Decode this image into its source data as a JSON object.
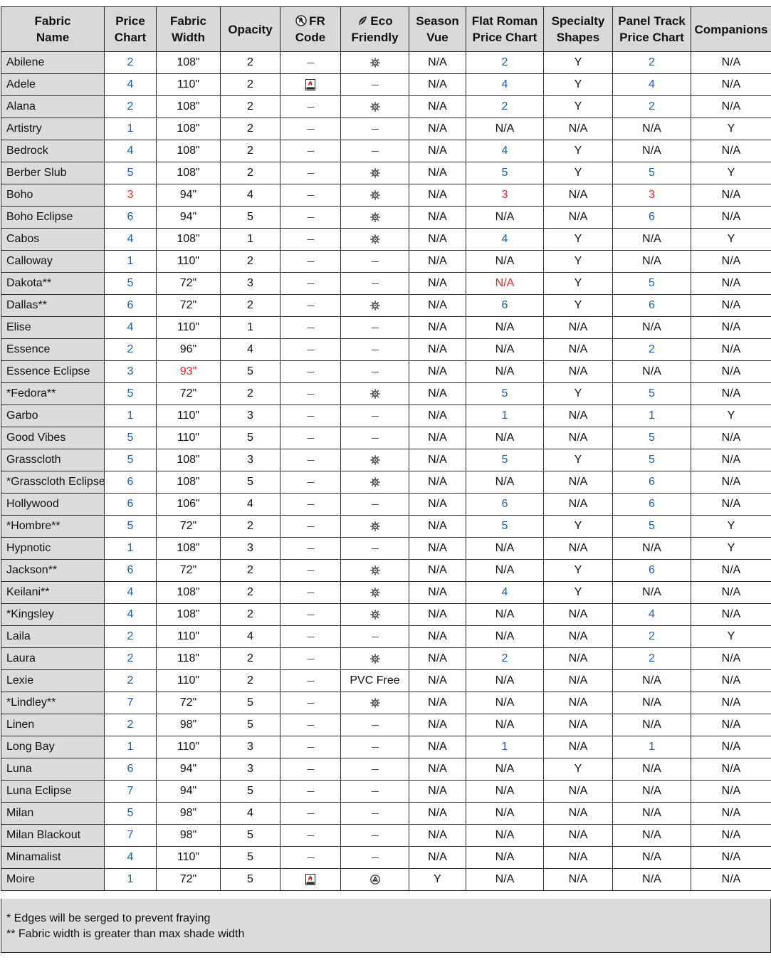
{
  "headers": [
    {
      "l1": "Fabric",
      "l2": "Name"
    },
    {
      "l1": "Price",
      "l2": "Chart"
    },
    {
      "l1": "Fabric",
      "l2": "Width"
    },
    {
      "l1": "Opacity",
      "l2": ""
    },
    {
      "l1": "FR",
      "l2": "Code",
      "icon": "fr-symbol-icon"
    },
    {
      "l1": "Eco",
      "l2": "Friendly",
      "icon": "eco-leaf-icon"
    },
    {
      "l1": "Season",
      "l2": "Vue"
    },
    {
      "l1": "Flat Roman",
      "l2": "Price Chart"
    },
    {
      "l1": "Specialty",
      "l2": "Shapes"
    },
    {
      "l1": "Panel Track",
      "l2": "Price Chart"
    },
    {
      "l1": "Companions",
      "l2": ""
    }
  ],
  "colors": {
    "blue": "#1f5fa6",
    "red": "#e0282e",
    "header_bg": "#d9d9d9",
    "name_bg": "#dcdcdc"
  },
  "rows": [
    {
      "name": "Abilene",
      "price": "2",
      "width": "108\"",
      "opacity": "2",
      "fr": "---",
      "eco": "eco",
      "season": "N/A",
      "flat": "2",
      "spec": "Y",
      "panel": "2",
      "comp": "N/A"
    },
    {
      "name": "Adele",
      "price": "4",
      "width": "110\"",
      "opacity": "2",
      "fr": "nfpa",
      "eco": "---",
      "season": "N/A",
      "flat": "4",
      "spec": "Y",
      "panel": "4",
      "comp": "N/A"
    },
    {
      "name": "Alana",
      "price": "2",
      "width": "108\"",
      "opacity": "2",
      "fr": "---",
      "eco": "eco",
      "season": "N/A",
      "flat": "2",
      "spec": "Y",
      "panel": "2",
      "comp": "N/A"
    },
    {
      "name": "Artistry",
      "price": "1",
      "width": "108\"",
      "opacity": "2",
      "fr": "---",
      "eco": "---",
      "season": "N/A",
      "flat": "N/A",
      "spec": "N/A",
      "panel": "N/A",
      "comp": "Y"
    },
    {
      "name": "Bedrock",
      "price": "4",
      "width": "108\"",
      "opacity": "2",
      "fr": "---",
      "eco": "---",
      "season": "N/A",
      "flat": "4",
      "spec": "Y",
      "panel": "N/A",
      "comp": "N/A"
    },
    {
      "name": "Berber Slub",
      "price": "5",
      "width": "108\"",
      "opacity": "2",
      "fr": "---",
      "eco": "eco",
      "season": "N/A",
      "flat": "5",
      "spec": "Y",
      "panel": "5",
      "comp": "Y"
    },
    {
      "name": "Boho",
      "price": "3",
      "width": "94\"",
      "opacity": "4",
      "fr": "---",
      "eco": "eco",
      "season": "N/A",
      "flat": "3",
      "spec": "N/A",
      "panel": "3",
      "comp": "N/A",
      "red": [
        "price",
        "flat",
        "panel"
      ]
    },
    {
      "name": "Boho Eclipse",
      "price": "6",
      "width": "94\"",
      "opacity": "5",
      "fr": "---",
      "eco": "eco",
      "season": "N/A",
      "flat": "N/A",
      "spec": "N/A",
      "panel": "6",
      "comp": "N/A"
    },
    {
      "name": "Cabos",
      "price": "4",
      "width": "108\"",
      "opacity": "1",
      "fr": "---",
      "eco": "eco",
      "season": "N/A",
      "flat": "4",
      "spec": "Y",
      "panel": "N/A",
      "comp": "Y"
    },
    {
      "name": "Calloway",
      "price": "1",
      "width": "110\"",
      "opacity": "2",
      "fr": "---",
      "eco": "---",
      "season": "N/A",
      "flat": "N/A",
      "spec": "Y",
      "panel": "N/A",
      "comp": "N/A"
    },
    {
      "name": "Dakota**",
      "price": "5",
      "width": "72\"",
      "opacity": "3",
      "fr": "---",
      "eco": "---",
      "season": "N/A",
      "flat": "N/A",
      "spec": "Y",
      "panel": "5",
      "comp": "N/A",
      "red": [
        "flat"
      ]
    },
    {
      "name": "Dallas**",
      "price": "6",
      "width": "72\"",
      "opacity": "2",
      "fr": "---",
      "eco": "eco",
      "season": "N/A",
      "flat": "6",
      "spec": "Y",
      "panel": "6",
      "comp": "N/A"
    },
    {
      "name": "Elise",
      "price": "4",
      "width": "110\"",
      "opacity": "1",
      "fr": "---",
      "eco": "---",
      "season": "N/A",
      "flat": "N/A",
      "spec": "N/A",
      "panel": "N/A",
      "comp": "N/A"
    },
    {
      "name": "Essence",
      "price": "2",
      "width": "96\"",
      "opacity": "4",
      "fr": "---",
      "eco": "---",
      "season": "N/A",
      "flat": "N/A",
      "spec": "N/A",
      "panel": "2",
      "comp": "N/A"
    },
    {
      "name": "Essence Eclipse",
      "price": "3",
      "width": "93\"",
      "opacity": "5",
      "fr": "---",
      "eco": "---",
      "season": "N/A",
      "flat": "N/A",
      "spec": "N/A",
      "panel": "N/A",
      "comp": "N/A",
      "red": [
        "width"
      ]
    },
    {
      "name": "*Fedora**",
      "price": "5",
      "width": "72\"",
      "opacity": "2",
      "fr": "---",
      "eco": "eco",
      "season": "N/A",
      "flat": "5",
      "spec": "Y",
      "panel": "5",
      "comp": "N/A"
    },
    {
      "name": "Garbo",
      "price": "1",
      "width": "110\"",
      "opacity": "3",
      "fr": "---",
      "eco": "---",
      "season": "N/A",
      "flat": "1",
      "spec": "N/A",
      "panel": "1",
      "comp": "Y"
    },
    {
      "name": "Good Vibes",
      "price": "5",
      "width": "110\"",
      "opacity": "5",
      "fr": "---",
      "eco": "---",
      "season": "N/A",
      "flat": "N/A",
      "spec": "N/A",
      "panel": "5",
      "comp": "N/A"
    },
    {
      "name": "Grasscloth",
      "price": "5",
      "width": "108\"",
      "opacity": "3",
      "fr": "---",
      "eco": "eco",
      "season": "N/A",
      "flat": "5",
      "spec": "Y",
      "panel": "5",
      "comp": "N/A"
    },
    {
      "name": "*Grasscloth Eclipse",
      "price": "6",
      "width": "108\"",
      "opacity": "5",
      "fr": "---",
      "eco": "eco",
      "season": "N/A",
      "flat": "N/A",
      "spec": "N/A",
      "panel": "6",
      "comp": "N/A"
    },
    {
      "name": "Hollywood",
      "price": "6",
      "width": "106\"",
      "opacity": "4",
      "fr": "---",
      "eco": "---",
      "season": "N/A",
      "flat": "6",
      "spec": "N/A",
      "panel": "6",
      "comp": "N/A"
    },
    {
      "name": "*Hombre**",
      "price": "5",
      "width": "72\"",
      "opacity": "2",
      "fr": "---",
      "eco": "eco",
      "season": "N/A",
      "flat": "5",
      "spec": "Y",
      "panel": "5",
      "comp": "Y"
    },
    {
      "name": "Hypnotic",
      "price": "1",
      "width": "108\"",
      "opacity": "3",
      "fr": "---",
      "eco": "---",
      "season": "N/A",
      "flat": "N/A",
      "spec": "N/A",
      "panel": "N/A",
      "comp": "Y"
    },
    {
      "name": "Jackson**",
      "price": "6",
      "width": "72\"",
      "opacity": "2",
      "fr": "---",
      "eco": "eco",
      "season": "N/A",
      "flat": "N/A",
      "spec": "Y",
      "panel": "6",
      "comp": "N/A"
    },
    {
      "name": "Keilani**",
      "price": "4",
      "width": "108\"",
      "opacity": "2",
      "fr": "---",
      "eco": "eco",
      "season": "N/A",
      "flat": "4",
      "spec": "Y",
      "panel": "N/A",
      "comp": "N/A"
    },
    {
      "name": "*Kingsley",
      "price": "4",
      "width": "108\"",
      "opacity": "2",
      "fr": "---",
      "eco": "eco",
      "season": "N/A",
      "flat": "N/A",
      "spec": "N/A",
      "panel": "4",
      "comp": "N/A"
    },
    {
      "name": "Laila",
      "price": "2",
      "width": "110\"",
      "opacity": "4",
      "fr": "---",
      "eco": "---",
      "season": "N/A",
      "flat": "N/A",
      "spec": "N/A",
      "panel": "2",
      "comp": "Y"
    },
    {
      "name": "Laura",
      "price": "2",
      "width": "118\"",
      "opacity": "2",
      "fr": "---",
      "eco": "eco",
      "season": "N/A",
      "flat": "2",
      "spec": "N/A",
      "panel": "2",
      "comp": "N/A"
    },
    {
      "name": "Lexie",
      "price": "2",
      "width": "110\"",
      "opacity": "2",
      "fr": "---",
      "eco": "PVC Free",
      "season": "N/A",
      "flat": "N/A",
      "spec": "N/A",
      "panel": "N/A",
      "comp": "N/A"
    },
    {
      "name": "*Lindley**",
      "price": "7",
      "width": "72\"",
      "opacity": "5",
      "fr": "---",
      "eco": "eco",
      "season": "N/A",
      "flat": "N/A",
      "spec": "N/A",
      "panel": "N/A",
      "comp": "N/A"
    },
    {
      "name": "Linen",
      "price": "2",
      "width": "98\"",
      "opacity": "5",
      "fr": "---",
      "eco": "---",
      "season": "N/A",
      "flat": "N/A",
      "spec": "N/A",
      "panel": "N/A",
      "comp": "N/A"
    },
    {
      "name": "Long Bay",
      "price": "1",
      "width": "110\"",
      "opacity": "3",
      "fr": "---",
      "eco": "---",
      "season": "N/A",
      "flat": "1",
      "spec": "N/A",
      "panel": "1",
      "comp": "N/A"
    },
    {
      "name": "Luna",
      "price": "6",
      "width": "94\"",
      "opacity": "3",
      "fr": "---",
      "eco": "---",
      "season": "N/A",
      "flat": "N/A",
      "spec": "Y",
      "panel": "N/A",
      "comp": "N/A"
    },
    {
      "name": "Luna Eclipse",
      "price": "7",
      "width": "94\"",
      "opacity": "5",
      "fr": "---",
      "eco": "---",
      "season": "N/A",
      "flat": "N/A",
      "spec": "N/A",
      "panel": "N/A",
      "comp": "N/A"
    },
    {
      "name": "Milan",
      "price": "5",
      "width": "98\"",
      "opacity": "4",
      "fr": "---",
      "eco": "---",
      "season": "N/A",
      "flat": "N/A",
      "spec": "N/A",
      "panel": "N/A",
      "comp": "N/A"
    },
    {
      "name": "Milan Blackout",
      "price": "7",
      "width": "98\"",
      "opacity": "5",
      "fr": "---",
      "eco": "---",
      "season": "N/A",
      "flat": "N/A",
      "spec": "N/A",
      "panel": "N/A",
      "comp": "N/A"
    },
    {
      "name": "Minamalist",
      "price": "4",
      "width": "110\"",
      "opacity": "5",
      "fr": "---",
      "eco": "---",
      "season": "N/A",
      "flat": "N/A",
      "spec": "N/A",
      "panel": "N/A",
      "comp": "N/A"
    },
    {
      "name": "Moire",
      "price": "1",
      "width": "72\"",
      "opacity": "5",
      "fr": "nfpa",
      "eco": "recycle",
      "season": "Y",
      "flat": "N/A",
      "spec": "N/A",
      "panel": "N/A",
      "comp": "N/A"
    }
  ],
  "footnotes": {
    "serged": "* Edges will be serged to prevent fraying",
    "width": "** Fabric width is greater than max shade width"
  }
}
